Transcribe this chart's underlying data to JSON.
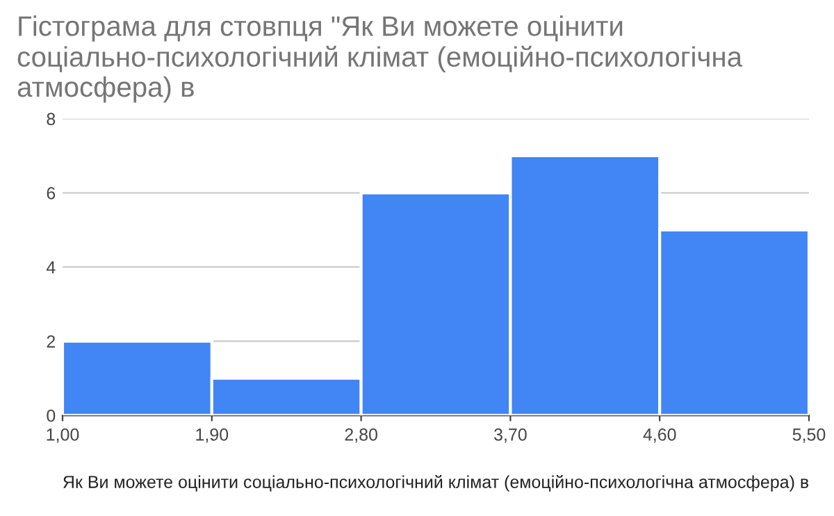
{
  "chart_data": {
    "type": "histogram",
    "title": "Гістограма для стовпця \"Як Ви можете оцінити соціально-психологічний клімат (емоційно-психологічна атмосфера) в",
    "xlabel": "Як Ви можете оцінити соціально-психологічний клімат (емоційно-психологічна атмосфера) в",
    "bins": [
      1.0,
      1.9,
      2.8,
      3.7,
      4.6,
      5.5
    ],
    "values": [
      2,
      1,
      6,
      7,
      5
    ],
    "color": "#4285f4",
    "xlim": [
      1.0,
      5.5
    ],
    "xticks": [
      {
        "value": 1.0,
        "label": "1,00"
      },
      {
        "value": 1.9,
        "label": "1,90"
      },
      {
        "value": 2.8,
        "label": "2,80"
      },
      {
        "value": 3.7,
        "label": "3,70"
      },
      {
        "value": 4.6,
        "label": "4,60"
      },
      {
        "value": 5.5,
        "label": "5,50"
      }
    ],
    "ylim": [
      0,
      8
    ],
    "yticks": [
      0,
      2,
      4,
      6,
      8
    ],
    "grid": "y"
  }
}
